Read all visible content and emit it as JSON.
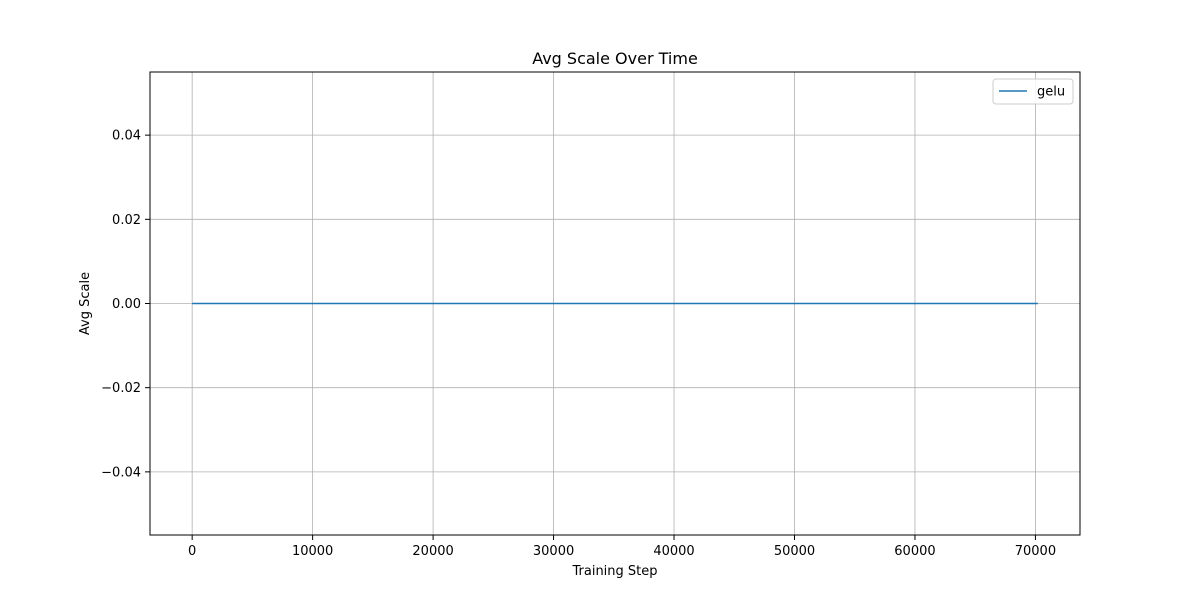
{
  "chart_data": {
    "type": "line",
    "title": "Avg Scale Over Time",
    "xlabel": "Training Step",
    "ylabel": "Avg Scale",
    "xlim": [
      -3500,
      73700
    ],
    "ylim": [
      -0.055,
      0.055
    ],
    "x_ticks": [
      0,
      10000,
      20000,
      30000,
      40000,
      50000,
      60000,
      70000
    ],
    "y_ticks": [
      -0.04,
      -0.02,
      0.0,
      0.02,
      0.04
    ],
    "x_tick_labels": [
      "0",
      "10000",
      "20000",
      "30000",
      "40000",
      "50000",
      "60000",
      "70000"
    ],
    "y_tick_labels": [
      "−0.04",
      "−0.02",
      "0.00",
      "0.02",
      "0.04"
    ],
    "grid": true,
    "legend": {
      "placement": "top-right",
      "entries": [
        "gelu"
      ]
    },
    "series": [
      {
        "name": "gelu",
        "color": "#1f77b4",
        "x": [
          0,
          70200
        ],
        "y": [
          0.0,
          0.0
        ]
      }
    ]
  }
}
